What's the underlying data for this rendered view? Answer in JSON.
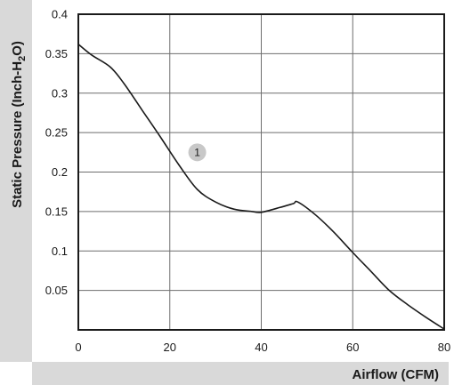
{
  "chart_data": {
    "type": "line",
    "xlabel": "Airflow (CFM)",
    "ylabel_prefix": "Static Pressure (Inch-H",
    "ylabel_sub": "2",
    "ylabel_suffix": "O)",
    "xlim": [
      0,
      80
    ],
    "ylim": [
      0,
      0.4
    ],
    "x_ticks": [
      0,
      20,
      40,
      60,
      80
    ],
    "x_tick_labels": [
      "0",
      "20",
      "40",
      "60",
      "80"
    ],
    "y_ticks": [
      0.05,
      0.1,
      0.15,
      0.2,
      0.25,
      0.3,
      0.35,
      0.4
    ],
    "y_tick_labels": [
      "0.05",
      "0.1",
      "0.15",
      "0.2",
      "0.25",
      "0.3",
      "0.35",
      "0.4"
    ],
    "grid": true,
    "series": [
      {
        "label": "1",
        "label_at": [
          26,
          0.225
        ],
        "x": [
          0,
          3,
          7,
          10,
          14,
          18,
          22,
          26,
          30,
          34,
          38,
          40,
          44,
          47,
          48,
          52,
          56,
          60,
          64,
          68,
          72,
          76,
          80
        ],
        "y": [
          0.362,
          0.348,
          0.333,
          0.312,
          0.278,
          0.244,
          0.209,
          0.178,
          0.162,
          0.153,
          0.15,
          0.149,
          0.155,
          0.16,
          0.162,
          0.145,
          0.123,
          0.098,
          0.074,
          0.05,
          0.032,
          0.016,
          0.001
        ]
      }
    ]
  }
}
